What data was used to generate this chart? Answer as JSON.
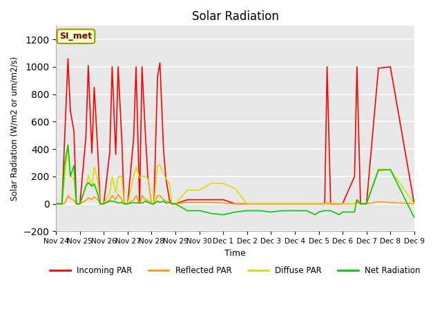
{
  "title": "Solar Radiation",
  "xlabel": "Time",
  "ylabel": "Solar Radiation (W/m2 or um/m2/s)",
  "ylim": [
    -200,
    1300
  ],
  "yticks": [
    -200,
    0,
    200,
    400,
    600,
    800,
    1000,
    1200
  ],
  "plot_bg_color": "#e8e8e8",
  "annotation_text": "SI_met",
  "annotation_bg": "#ffffcc",
  "annotation_border": "#999900",
  "x_tick_labels": [
    "Nov 24",
    "Nov 25",
    "Nov 26",
    "Nov 27",
    "Nov 28",
    "Nov 29",
    "Nov 30",
    "Dec 1",
    "Dec 2",
    "Dec 3",
    "Dec 4",
    "Dec 5",
    "Dec 6",
    "Dec 7",
    "Dec 8",
    "Dec 9"
  ],
  "series_colors": {
    "incoming": "#ff0000",
    "reflected": "#ff9900",
    "diffuse": "#dddd00",
    "net": "#00cc00"
  },
  "series_labels": {
    "incoming": "Incoming PAR",
    "reflected": "Reflected PAR",
    "diffuse": "Diffuse PAR",
    "net": "Net Radiation"
  },
  "incoming_x": [
    0.0,
    0.25,
    0.35,
    0.5,
    0.6,
    0.75,
    0.85,
    1.0,
    1.25,
    1.35,
    1.5,
    1.6,
    1.75,
    1.85,
    2.0,
    2.25,
    2.35,
    2.5,
    2.6,
    2.75,
    2.85,
    3.0,
    3.25,
    3.35,
    3.5,
    3.6,
    3.75,
    3.85,
    4.0,
    4.1,
    4.25,
    4.35,
    4.5,
    4.6,
    4.75,
    4.85,
    5.0,
    5.5,
    6.0,
    6.5,
    7.0,
    7.5,
    8.0,
    8.5,
    9.0,
    9.5,
    10.0,
    10.5,
    10.6,
    10.75,
    10.85,
    11.0,
    11.25,
    11.35,
    11.5,
    11.6,
    11.75,
    11.85,
    12.0,
    12.5,
    12.6,
    12.75,
    12.85,
    13.0,
    13.5,
    14.0,
    15.0
  ],
  "incoming_y": [
    0,
    0,
    430,
    1060,
    680,
    530,
    0,
    0,
    490,
    1010,
    370,
    850,
    380,
    0,
    0,
    380,
    1000,
    360,
    1000,
    480,
    0,
    0,
    480,
    1000,
    0,
    1000,
    480,
    185,
    0,
    0,
    930,
    1030,
    400,
    185,
    30,
    0,
    0,
    30,
    30,
    30,
    30,
    0,
    0,
    0,
    0,
    0,
    0,
    0,
    0,
    0,
    0,
    0,
    0,
    1000,
    0,
    0,
    0,
    0,
    0,
    200,
    1000,
    0,
    0,
    0,
    990,
    1000,
    0
  ],
  "reflected_x": [
    0.0,
    0.25,
    0.35,
    0.5,
    0.6,
    0.75,
    0.85,
    1.0,
    1.25,
    1.35,
    1.5,
    1.6,
    1.75,
    1.85,
    2.0,
    2.25,
    2.35,
    2.5,
    2.6,
    2.75,
    2.85,
    3.0,
    3.25,
    3.35,
    3.5,
    3.6,
    3.75,
    3.85,
    4.0,
    4.1,
    4.25,
    4.35,
    4.5,
    4.6,
    4.75,
    4.85,
    5.0,
    5.5,
    6.0,
    6.5,
    7.0,
    7.5,
    8.0,
    8.5,
    9.0,
    9.5,
    10.0,
    10.5,
    10.6,
    10.75,
    10.85,
    11.0,
    11.25,
    11.35,
    11.5,
    11.6,
    11.75,
    11.85,
    12.0,
    12.5,
    12.6,
    12.75,
    12.85,
    13.0,
    13.5,
    14.0,
    15.0
  ],
  "reflected_y": [
    0,
    0,
    0,
    60,
    40,
    25,
    0,
    0,
    25,
    45,
    30,
    50,
    30,
    0,
    0,
    30,
    60,
    30,
    70,
    30,
    0,
    0,
    30,
    60,
    0,
    60,
    30,
    25,
    0,
    0,
    60,
    60,
    30,
    20,
    10,
    0,
    0,
    10,
    10,
    10,
    5,
    0,
    0,
    0,
    0,
    0,
    0,
    0,
    0,
    0,
    0,
    0,
    0,
    0,
    0,
    0,
    0,
    0,
    0,
    0,
    10,
    0,
    0,
    0,
    15,
    10,
    0
  ],
  "diffuse_x": [
    0.0,
    0.25,
    0.35,
    0.5,
    0.6,
    0.75,
    0.85,
    1.0,
    1.25,
    1.35,
    1.5,
    1.6,
    1.75,
    1.85,
    2.0,
    2.25,
    2.35,
    2.5,
    2.6,
    2.75,
    2.85,
    3.0,
    3.25,
    3.35,
    3.5,
    3.6,
    3.75,
    3.85,
    4.0,
    4.1,
    4.25,
    4.35,
    4.5,
    4.6,
    4.75,
    4.85,
    5.0,
    5.5,
    6.0,
    6.5,
    7.0,
    7.5,
    8.0,
    8.5,
    9.0,
    9.5,
    10.0,
    10.5,
    10.6,
    10.75,
    10.85,
    11.0,
    11.25,
    11.35,
    11.5,
    11.6,
    11.75,
    11.85,
    12.0,
    12.5,
    12.6,
    12.75,
    12.85,
    13.0,
    13.5,
    14.0,
    15.0
  ],
  "diffuse_y": [
    0,
    0,
    180,
    420,
    200,
    180,
    0,
    0,
    120,
    210,
    120,
    270,
    170,
    0,
    0,
    80,
    200,
    80,
    200,
    200,
    0,
    0,
    200,
    270,
    190,
    200,
    200,
    180,
    0,
    0,
    280,
    285,
    220,
    185,
    150,
    0,
    0,
    100,
    100,
    150,
    150,
    110,
    0,
    0,
    0,
    0,
    0,
    0,
    0,
    0,
    0,
    0,
    0,
    10,
    5,
    5,
    5,
    0,
    0,
    0,
    30,
    0,
    0,
    0,
    255,
    250,
    0
  ],
  "net_x": [
    0.0,
    0.25,
    0.35,
    0.5,
    0.6,
    0.75,
    0.85,
    1.0,
    1.25,
    1.35,
    1.5,
    1.6,
    1.75,
    1.85,
    2.0,
    2.25,
    2.35,
    2.5,
    2.6,
    2.75,
    2.85,
    3.0,
    3.25,
    3.35,
    3.5,
    3.6,
    3.75,
    3.85,
    4.0,
    4.1,
    4.25,
    4.35,
    4.5,
    4.6,
    4.75,
    4.85,
    5.0,
    5.5,
    6.0,
    6.5,
    7.0,
    7.5,
    8.0,
    8.5,
    9.0,
    9.5,
    10.0,
    10.5,
    10.6,
    10.75,
    10.85,
    11.0,
    11.25,
    11.35,
    11.5,
    11.6,
    11.75,
    11.85,
    12.0,
    12.5,
    12.6,
    12.75,
    12.85,
    13.0,
    13.5,
    14.0,
    15.0
  ],
  "net_y": [
    0,
    0,
    280,
    430,
    200,
    280,
    0,
    0,
    130,
    155,
    130,
    145,
    70,
    0,
    0,
    20,
    20,
    15,
    5,
    10,
    0,
    0,
    10,
    5,
    10,
    5,
    20,
    10,
    0,
    0,
    20,
    10,
    20,
    5,
    10,
    0,
    0,
    -50,
    -50,
    -70,
    -80,
    -60,
    -50,
    -50,
    -60,
    -50,
    -50,
    -50,
    -60,
    -70,
    -80,
    -60,
    -50,
    -50,
    -50,
    -60,
    -70,
    -80,
    -60,
    -60,
    30,
    0,
    0,
    0,
    245,
    250,
    -100
  ]
}
